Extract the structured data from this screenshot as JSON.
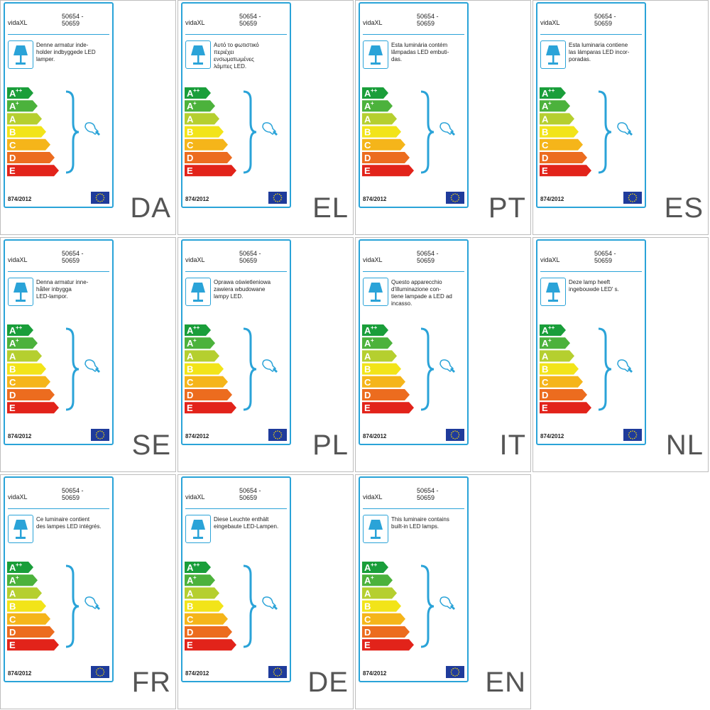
{
  "brand": "vidaXL",
  "model_line1": "50654 -",
  "model_line2": "50659",
  "regulation": "874/2012",
  "energy_classes": [
    {
      "letter": "A",
      "sup": "++",
      "color": "#1a9e3a"
    },
    {
      "letter": "A",
      "sup": "+",
      "color": "#4cb23c"
    },
    {
      "letter": "A",
      "sup": "",
      "color": "#b5cf2f"
    },
    {
      "letter": "B",
      "sup": "",
      "color": "#f2e419"
    },
    {
      "letter": "C",
      "sup": "",
      "color": "#f5b51a"
    },
    {
      "letter": "D",
      "sup": "",
      "color": "#ec6c1f"
    },
    {
      "letter": "E",
      "sup": "",
      "color": "#e2231a"
    }
  ],
  "colors": {
    "label_border": "#2aa3d8",
    "lamp_icon": "#2aa3d8",
    "eu_flag_blue": "#1f3b9b",
    "eu_flag_stars": "#ffde00"
  },
  "icons": {
    "lamp": "table-lamp-icon",
    "bulb": "light-bulb-icon",
    "bracket": "curly-bracket",
    "flag": "eu-flag-icon"
  },
  "labels": [
    {
      "code": "DA",
      "lines": [
        "Denne armatur inde-",
        "holder indbyggede LED",
        "lamper."
      ]
    },
    {
      "code": "EL",
      "lines": [
        "Αυτό το φωτιστικό",
        "περιέχει",
        "ενσωματωμένες",
        "λάμπες LED."
      ]
    },
    {
      "code": "PT",
      "lines": [
        "Esta luminária contém",
        "lâmpadas LED embuti-",
        "das."
      ]
    },
    {
      "code": "ES",
      "lines": [
        "Esta luminaria contiene",
        "las lámparas LED incor-",
        "poradas."
      ]
    },
    {
      "code": "SE",
      "lines": [
        "Denna armatur inne-",
        "håller inbygga",
        "LED-lampor."
      ]
    },
    {
      "code": "PL",
      "lines": [
        "Oprawa oświetleniowa",
        "zawiera wbudowane",
        "lampy LED."
      ]
    },
    {
      "code": "IT",
      "lines": [
        "Questo apparecchio",
        "d'illuminazione con-",
        "tiene lampade a LED ad",
        "incasso."
      ]
    },
    {
      "code": "NL",
      "lines": [
        "Deze lamp heeft",
        "ingebouwde LED'  s."
      ]
    },
    {
      "code": "FR",
      "lines": [
        "Ce luminaire contient",
        "des lampes LED intégrés."
      ]
    },
    {
      "code": "DE",
      "lines": [
        "Diese Leuchte enthält",
        "eingebaute LED-Lampen."
      ]
    },
    {
      "code": "EN",
      "lines": [
        "This luminaire contains",
        "built-in LED lamps."
      ]
    }
  ]
}
